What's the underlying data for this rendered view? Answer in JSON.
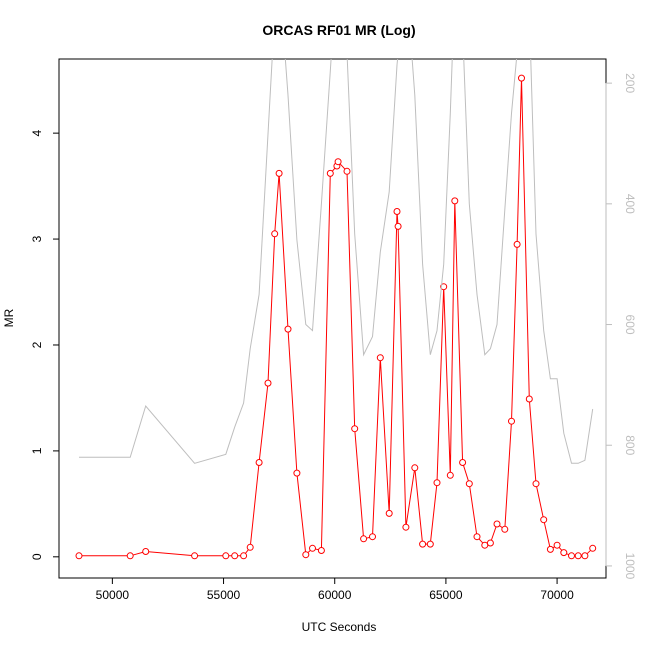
{
  "chart_data": {
    "type": "line",
    "title": "ORCAS RF01 MR (Log)",
    "xlabel": "UTC Seconds",
    "ylabel": "MR",
    "xlim": [
      47600,
      72200
    ],
    "ylim": [
      -0.2,
      4.7
    ],
    "y2lim": [
      1020,
      160
    ],
    "x_ticks": [
      50000,
      55000,
      60000,
      65000,
      70000
    ],
    "y_ticks": [
      0,
      1,
      2,
      3,
      4
    ],
    "y2_ticks": [
      200,
      400,
      600,
      800,
      1000
    ],
    "grid": false,
    "series": [
      {
        "axis": "left",
        "color": "#ff0000",
        "marker": "open-circle",
        "x": [
          48500,
          50800,
          51500,
          53700,
          55100,
          55500,
          55900,
          56200,
          56600,
          57000,
          57300,
          57500,
          57900,
          58300,
          58700,
          59000,
          59400,
          59800,
          60100,
          60150,
          60550,
          60900,
          61300,
          61700,
          62050,
          62450,
          62800,
          62850,
          63200,
          63600,
          63950,
          64300,
          64600,
          64900,
          65200,
          65400,
          65750,
          66050,
          66400,
          66750,
          67000,
          67300,
          67650,
          67950,
          68200,
          68400,
          68750,
          69050,
          69400,
          69700,
          70000,
          70300,
          70650,
          70950,
          71250,
          71600
        ],
        "y": [
          0.01,
          0.01,
          0.05,
          0.01,
          0.01,
          0.01,
          0.01,
          0.09,
          0.89,
          1.64,
          3.05,
          3.62,
          2.15,
          0.79,
          0.02,
          0.08,
          0.06,
          3.62,
          3.69,
          3.73,
          3.64,
          1.21,
          0.17,
          0.19,
          1.88,
          0.41,
          3.26,
          3.12,
          0.28,
          0.84,
          0.12,
          0.12,
          0.7,
          2.55,
          0.77,
          3.36,
          0.89,
          0.69,
          0.19,
          0.11,
          0.13,
          0.31,
          0.26,
          1.28,
          2.95,
          4.52,
          1.49,
          0.69,
          0.35,
          0.07,
          0.11,
          0.04,
          0.01,
          0.01,
          0.01,
          0.08
        ]
      },
      {
        "axis": "right",
        "color": "#bebebe",
        "marker": "none",
        "x": [
          48500,
          50800,
          51500,
          53700,
          55100,
          55500,
          55900,
          56200,
          56600,
          57200,
          57500,
          57900,
          58300,
          58700,
          59000,
          59400,
          59800,
          60100,
          60550,
          60900,
          61300,
          61700,
          62050,
          62450,
          62800,
          63200,
          63600,
          63950,
          64300,
          64600,
          64900,
          65200,
          65400,
          65750,
          66050,
          66400,
          66750,
          67000,
          67300,
          67650,
          67950,
          68400,
          68750,
          69050,
          69400,
          69700,
          70000,
          70300,
          70650,
          70950,
          71250,
          71600
        ],
        "y": [
          820,
          820,
          735,
          830,
          815,
          770,
          730,
          640,
          550,
          150,
          20,
          220,
          460,
          600,
          610,
          400,
          180,
          10,
          150,
          450,
          650,
          620,
          480,
          380,
          170,
          20,
          220,
          500,
          650,
          610,
          500,
          250,
          40,
          110,
          400,
          550,
          650,
          640,
          600,
          410,
          250,
          70,
          80,
          450,
          610,
          690,
          690,
          780,
          830,
          830,
          825,
          740
        ]
      }
    ]
  }
}
